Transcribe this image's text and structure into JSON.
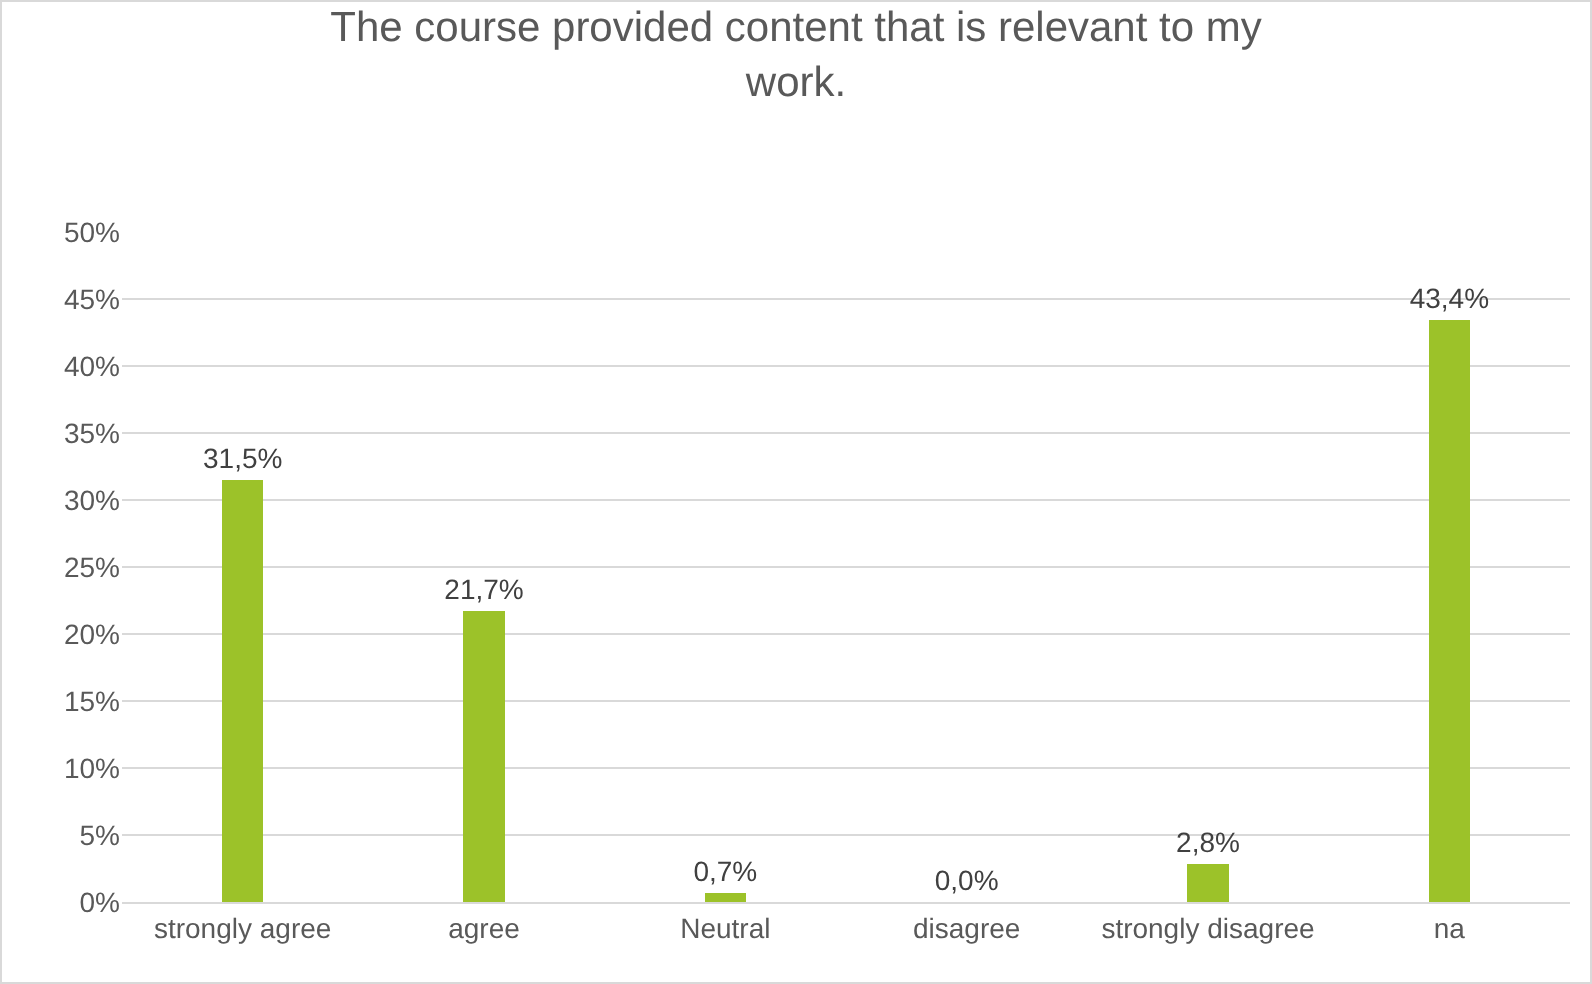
{
  "chart_data": {
    "type": "bar",
    "title": "The course provided content that is relevant to my work.",
    "categories": [
      "strongly agree",
      "agree",
      "Neutral",
      "disagree",
      "strongly disagree",
      "na"
    ],
    "values": [
      31.5,
      21.7,
      0.7,
      0.0,
      2.8,
      43.4
    ],
    "value_labels": [
      "31,5%",
      "21,7%",
      "0,7%",
      "0,0%",
      "2,8%",
      "43,4%"
    ],
    "color": "#9cc229",
    "ylim": [
      0,
      50
    ],
    "yticks": [
      {
        "value": 0,
        "label": "0%"
      },
      {
        "value": 5,
        "label": "5%"
      },
      {
        "value": 10,
        "label": "10%"
      },
      {
        "value": 15,
        "label": "15%"
      },
      {
        "value": 20,
        "label": "20%"
      },
      {
        "value": 25,
        "label": "25%"
      },
      {
        "value": 30,
        "label": "30%"
      },
      {
        "value": 35,
        "label": "35%"
      },
      {
        "value": 40,
        "label": "40%"
      },
      {
        "value": 45,
        "label": "45%"
      },
      {
        "value": 50,
        "label": "50%"
      }
    ],
    "grid": "y"
  }
}
